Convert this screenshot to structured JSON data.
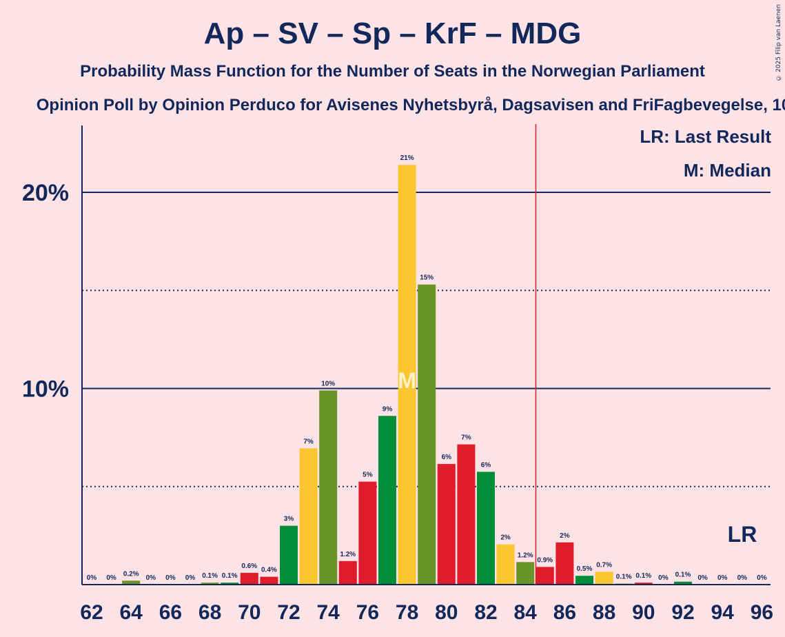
{
  "title": "Ap – SV – Sp – KrF – MDG",
  "subtitle": "Probability Mass Function for the Number of Seats in the Norwegian Parliament",
  "subtitle2": "Opinion Poll by Opinion Perduco for Avisenes Nyhetsbyrå, Dagsavisen and FriFagbevegelse, 10",
  "copyright": "© 2025 Filip van Laenen",
  "legend": {
    "last_result": "LR: Last Result",
    "median": "M: Median"
  },
  "markers": {
    "median_label": "M",
    "last_result_label": "LR",
    "median_seat": 78,
    "last_result_seat": 85
  },
  "colors": {
    "background": "#fde3e6",
    "text": "#12285a",
    "red": "#e01b2a",
    "yellow": "#fcc630",
    "green_olive": "#6b9428",
    "green": "#008d37",
    "last_result_line": "#e01b2a"
  },
  "chart_data": {
    "type": "bar",
    "x": [
      62,
      63,
      64,
      65,
      66,
      67,
      68,
      69,
      70,
      71,
      72,
      73,
      74,
      75,
      76,
      77,
      78,
      79,
      80,
      81,
      82,
      83,
      84,
      85,
      86,
      87,
      88,
      89,
      90,
      91,
      92,
      93,
      94,
      95,
      96
    ],
    "values": [
      0,
      0,
      0.2,
      0,
      0,
      0,
      0.1,
      0.1,
      0.6,
      0.4,
      3.0,
      6.95,
      9.9,
      1.2,
      5.25,
      8.6,
      21.4,
      15.3,
      6.15,
      7.15,
      5.75,
      2.05,
      1.15,
      0.9,
      2.15,
      0.45,
      0.65,
      0.05,
      0.1,
      0,
      0.15,
      0,
      0,
      0,
      0
    ],
    "labels": [
      "0%",
      "0%",
      "0.2%",
      "0%",
      "0%",
      "0%",
      "0.1%",
      "0.1%",
      "0.6%",
      "0.4%",
      "3%",
      "7%",
      "10%",
      "1.2%",
      "5%",
      "9%",
      "21%",
      "15%",
      "6%",
      "7%",
      "6%",
      "2%",
      "1.2%",
      "0.9%",
      "2%",
      "0.5%",
      "0.7%",
      "0.1%",
      "0.1%",
      "0%",
      "0.1%",
      "0%",
      "0%",
      "0%",
      "0%"
    ],
    "bar_colors": [
      "red",
      "yellow",
      "olive",
      "green",
      "red",
      "yellow",
      "olive",
      "green",
      "red",
      "red",
      "green",
      "yellow",
      "olive",
      "red",
      "red",
      "green",
      "yellow",
      "olive",
      "red",
      "red",
      "green",
      "yellow",
      "olive",
      "red",
      "red",
      "green",
      "yellow",
      "olive",
      "red",
      "red",
      "green",
      "yellow",
      "olive",
      "red",
      "red"
    ],
    "x_tick_labels": [
      "62",
      "64",
      "66",
      "68",
      "70",
      "72",
      "74",
      "76",
      "78",
      "80",
      "82",
      "84",
      "86",
      "88",
      "90",
      "92",
      "94",
      "96"
    ],
    "y_tick_labels": [
      "10%",
      "20%"
    ],
    "ylim": [
      0,
      23.5
    ],
    "solid_gridlines": [
      10,
      20
    ],
    "dotted_gridlines": [
      5,
      15
    ],
    "unit": "%"
  }
}
